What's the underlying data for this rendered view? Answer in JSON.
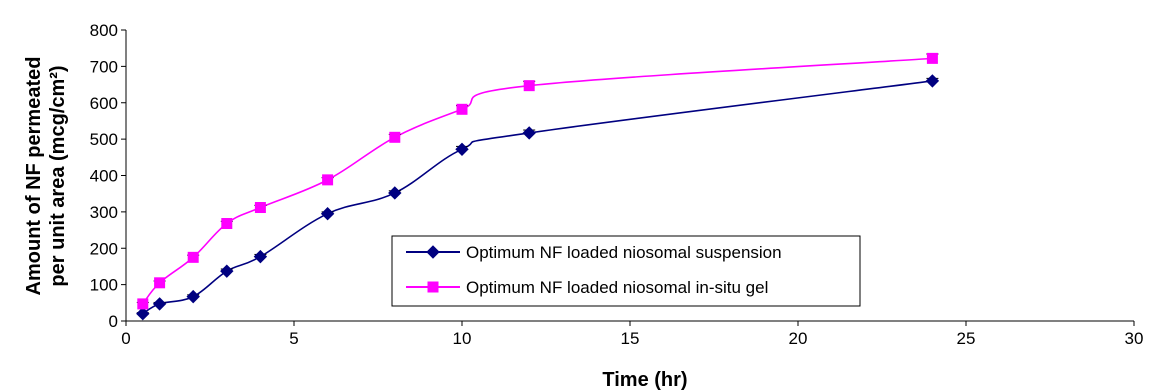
{
  "chart_data": {
    "type": "line",
    "xlabel": "Time (hr)",
    "ylabel_lines": [
      "Amount of NF permeated",
      "per unit area (mcg/cm²)"
    ],
    "xlim": [
      0,
      30
    ],
    "ylim": [
      0,
      800
    ],
    "xticks": [
      0,
      5,
      10,
      15,
      20,
      25,
      30
    ],
    "yticks": [
      0,
      100,
      200,
      300,
      400,
      500,
      600,
      700,
      800
    ],
    "grid": false,
    "legend_position": "center-right",
    "series": [
      {
        "name": "Optimum NF loaded niosomal suspension",
        "color": "#000080",
        "marker": "diamond",
        "x": [
          0.5,
          1,
          2,
          3,
          4,
          6,
          8,
          10,
          12,
          24
        ],
        "y": [
          20,
          47,
          67,
          137,
          177,
          295,
          352,
          472,
          517,
          660
        ],
        "error": [
          3,
          4,
          5,
          6,
          6,
          5,
          6,
          8,
          8,
          7
        ]
      },
      {
        "name": "Optimum NF loaded niosomal in-situ gel",
        "color": "#FF00FF",
        "marker": "square",
        "x": [
          0.5,
          1,
          2,
          3,
          4,
          6,
          8,
          10,
          12,
          24
        ],
        "y": [
          47,
          105,
          175,
          268,
          312,
          388,
          505,
          582,
          647,
          722
        ],
        "error": [
          4,
          5,
          6,
          6,
          6,
          6,
          8,
          10,
          12,
          12
        ]
      }
    ]
  }
}
